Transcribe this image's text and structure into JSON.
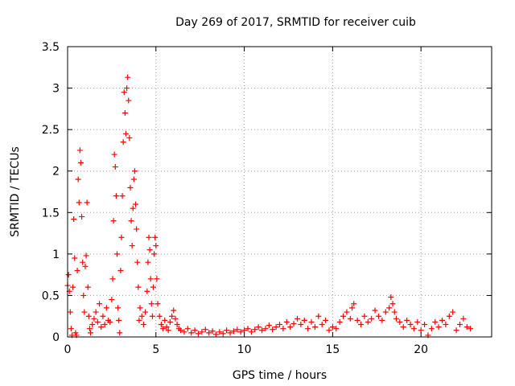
{
  "chart_data": {
    "type": "scatter",
    "title": "Day 269 of 2017, SRMTID for receiver cuib",
    "xlabel": "GPS time / hours",
    "ylabel": "SRMTID / TECUs",
    "xlim": [
      0,
      24
    ],
    "ylim": [
      0,
      3.5
    ],
    "xticks": [
      0,
      5,
      10,
      15,
      20
    ],
    "xtick_labels": [
      "0",
      "5",
      "10",
      "15",
      "20"
    ],
    "yticks": [
      0,
      0.5,
      1,
      1.5,
      2,
      2.5,
      3,
      3.5
    ],
    "ytick_labels": [
      "0",
      "0.5",
      "1",
      "1.5",
      "2",
      "2.5",
      "3",
      "3.5"
    ],
    "grid": true,
    "marker": "+",
    "series": [
      {
        "name": "SRMTID",
        "color": "#ff0000",
        "points": [
          [
            0.0,
            0.62
          ],
          [
            0.05,
            0.75
          ],
          [
            0.1,
            0.55
          ],
          [
            0.15,
            0.3
          ],
          [
            0.2,
            0.1
          ],
          [
            0.25,
            0.02
          ],
          [
            0.3,
            0.6
          ],
          [
            0.35,
            1.42
          ],
          [
            0.4,
            0.95
          ],
          [
            0.45,
            0.05
          ],
          [
            0.5,
            0.02
          ],
          [
            0.55,
            0.8
          ],
          [
            0.6,
            1.9
          ],
          [
            0.65,
            1.62
          ],
          [
            0.7,
            2.25
          ],
          [
            0.75,
            2.1
          ],
          [
            0.8,
            1.45
          ],
          [
            0.85,
            0.9
          ],
          [
            0.9,
            0.5
          ],
          [
            0.95,
            0.3
          ],
          [
            1.0,
            0.85
          ],
          [
            1.05,
            0.98
          ],
          [
            1.1,
            1.62
          ],
          [
            1.15,
            0.6
          ],
          [
            1.2,
            0.25
          ],
          [
            1.25,
            0.1
          ],
          [
            1.3,
            0.05
          ],
          [
            1.4,
            0.15
          ],
          [
            1.5,
            0.22
          ],
          [
            1.6,
            0.3
          ],
          [
            1.7,
            0.18
          ],
          [
            1.8,
            0.4
          ],
          [
            1.9,
            0.12
          ],
          [
            2.0,
            0.25
          ],
          [
            2.1,
            0.15
          ],
          [
            2.2,
            0.35
          ],
          [
            2.3,
            0.2
          ],
          [
            2.4,
            0.18
          ],
          [
            2.5,
            0.45
          ],
          [
            2.55,
            0.7
          ],
          [
            2.6,
            1.4
          ],
          [
            2.65,
            2.2
          ],
          [
            2.7,
            2.05
          ],
          [
            2.75,
            1.7
          ],
          [
            2.8,
            1.0
          ],
          [
            2.85,
            0.35
          ],
          [
            2.9,
            0.2
          ],
          [
            2.95,
            0.05
          ],
          [
            3.0,
            0.8
          ],
          [
            3.05,
            1.2
          ],
          [
            3.1,
            1.7
          ],
          [
            3.15,
            2.35
          ],
          [
            3.2,
            2.95
          ],
          [
            3.25,
            2.7
          ],
          [
            3.3,
            2.45
          ],
          [
            3.35,
            3.0
          ],
          [
            3.4,
            3.13
          ],
          [
            3.45,
            2.85
          ],
          [
            3.5,
            2.4
          ],
          [
            3.55,
            1.8
          ],
          [
            3.6,
            1.4
          ],
          [
            3.65,
            1.1
          ],
          [
            3.7,
            1.55
          ],
          [
            3.75,
            1.9
          ],
          [
            3.8,
            2.0
          ],
          [
            3.85,
            1.6
          ],
          [
            3.9,
            1.3
          ],
          [
            3.95,
            0.9
          ],
          [
            4.0,
            0.6
          ],
          [
            4.05,
            0.2
          ],
          [
            4.1,
            0.35
          ],
          [
            4.2,
            0.25
          ],
          [
            4.3,
            0.15
          ],
          [
            4.4,
            0.3
          ],
          [
            4.5,
            0.55
          ],
          [
            4.55,
            0.9
          ],
          [
            4.6,
            1.2
          ],
          [
            4.65,
            1.05
          ],
          [
            4.7,
            0.7
          ],
          [
            4.75,
            0.4
          ],
          [
            4.8,
            0.25
          ],
          [
            4.85,
            0.6
          ],
          [
            4.9,
            1.0
          ],
          [
            4.95,
            1.2
          ],
          [
            5.0,
            1.1
          ],
          [
            5.05,
            0.7
          ],
          [
            5.1,
            0.4
          ],
          [
            5.2,
            0.25
          ],
          [
            5.3,
            0.15
          ],
          [
            5.4,
            0.1
          ],
          [
            5.5,
            0.2
          ],
          [
            5.6,
            0.12
          ],
          [
            5.7,
            0.08
          ],
          [
            5.8,
            0.18
          ],
          [
            5.9,
            0.25
          ],
          [
            6.0,
            0.32
          ],
          [
            6.1,
            0.22
          ],
          [
            6.2,
            0.15
          ],
          [
            6.3,
            0.1
          ],
          [
            6.4,
            0.08
          ],
          [
            6.6,
            0.06
          ],
          [
            6.8,
            0.1
          ],
          [
            7.0,
            0.05
          ],
          [
            7.2,
            0.08
          ],
          [
            7.4,
            0.04
          ],
          [
            7.6,
            0.06
          ],
          [
            7.8,
            0.09
          ],
          [
            8.0,
            0.05
          ],
          [
            8.2,
            0.07
          ],
          [
            8.4,
            0.03
          ],
          [
            8.6,
            0.06
          ],
          [
            8.8,
            0.04
          ],
          [
            9.0,
            0.08
          ],
          [
            9.2,
            0.05
          ],
          [
            9.4,
            0.07
          ],
          [
            9.6,
            0.09
          ],
          [
            9.8,
            0.06
          ],
          [
            10.0,
            0.08
          ],
          [
            10.2,
            0.1
          ],
          [
            10.4,
            0.06
          ],
          [
            10.6,
            0.09
          ],
          [
            10.8,
            0.12
          ],
          [
            11.0,
            0.08
          ],
          [
            11.2,
            0.1
          ],
          [
            11.4,
            0.14
          ],
          [
            11.6,
            0.09
          ],
          [
            11.8,
            0.12
          ],
          [
            12.0,
            0.15
          ],
          [
            12.2,
            0.1
          ],
          [
            12.4,
            0.18
          ],
          [
            12.6,
            0.12
          ],
          [
            12.8,
            0.16
          ],
          [
            13.0,
            0.22
          ],
          [
            13.2,
            0.15
          ],
          [
            13.4,
            0.2
          ],
          [
            13.6,
            0.1
          ],
          [
            13.8,
            0.18
          ],
          [
            14.0,
            0.12
          ],
          [
            14.2,
            0.25
          ],
          [
            14.4,
            0.15
          ],
          [
            14.6,
            0.2
          ],
          [
            14.8,
            0.08
          ],
          [
            15.0,
            0.12
          ],
          [
            15.2,
            0.1
          ],
          [
            15.4,
            0.18
          ],
          [
            15.6,
            0.25
          ],
          [
            15.8,
            0.3
          ],
          [
            16.0,
            0.22
          ],
          [
            16.1,
            0.35
          ],
          [
            16.2,
            0.4
          ],
          [
            16.4,
            0.2
          ],
          [
            16.6,
            0.15
          ],
          [
            16.8,
            0.25
          ],
          [
            17.0,
            0.18
          ],
          [
            17.2,
            0.22
          ],
          [
            17.4,
            0.32
          ],
          [
            17.6,
            0.25
          ],
          [
            17.8,
            0.2
          ],
          [
            18.0,
            0.3
          ],
          [
            18.2,
            0.35
          ],
          [
            18.3,
            0.48
          ],
          [
            18.4,
            0.4
          ],
          [
            18.5,
            0.3
          ],
          [
            18.6,
            0.22
          ],
          [
            18.8,
            0.18
          ],
          [
            19.0,
            0.12
          ],
          [
            19.2,
            0.2
          ],
          [
            19.4,
            0.15
          ],
          [
            19.6,
            0.1
          ],
          [
            19.8,
            0.18
          ],
          [
            20.0,
            0.08
          ],
          [
            20.2,
            0.15
          ],
          [
            20.4,
            0.02
          ],
          [
            20.6,
            0.1
          ],
          [
            20.8,
            0.18
          ],
          [
            21.0,
            0.12
          ],
          [
            21.2,
            0.2
          ],
          [
            21.4,
            0.15
          ],
          [
            21.6,
            0.25
          ],
          [
            21.8,
            0.3
          ],
          [
            22.0,
            0.08
          ],
          [
            22.2,
            0.15
          ],
          [
            22.4,
            0.22
          ],
          [
            22.6,
            0.12
          ],
          [
            22.8,
            0.1
          ]
        ]
      }
    ]
  }
}
